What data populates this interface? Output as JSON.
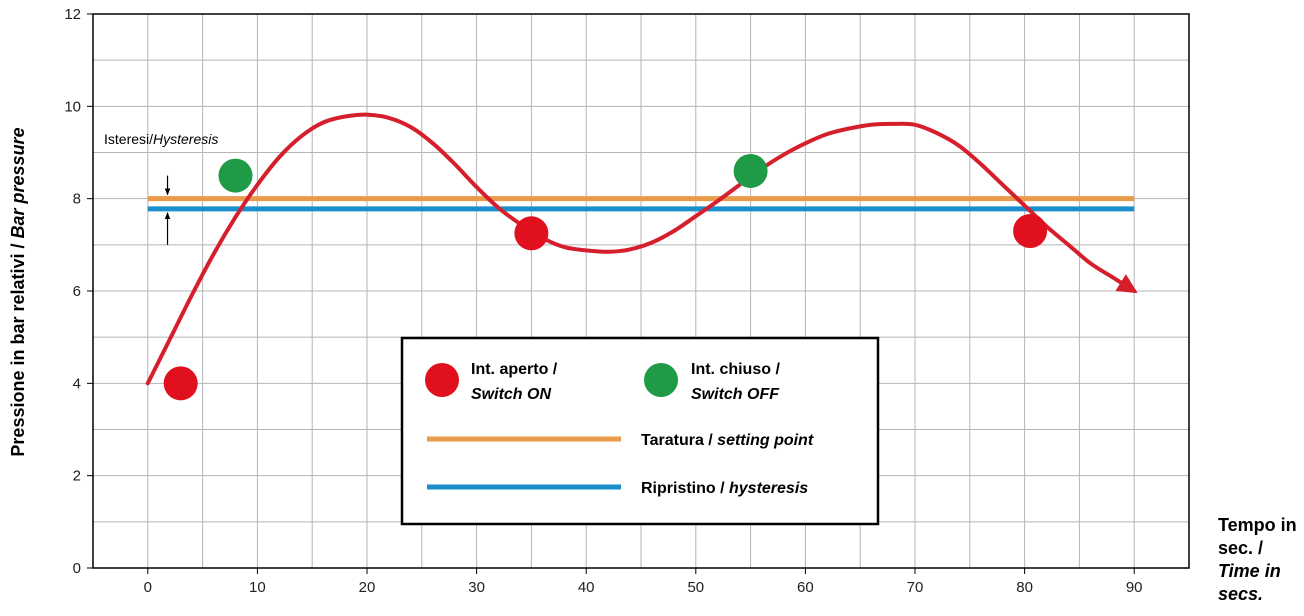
{
  "colors": {
    "curve": "#d61f2c",
    "setting_line": "#e99a4a",
    "hysteresis_line": "#1a8fcc",
    "switch_on": "#e0101e",
    "switch_off": "#1f9a46",
    "grid": "#b5b5b5"
  },
  "chart_data": {
    "type": "line",
    "x_ticks": [
      0,
      10,
      20,
      30,
      40,
      50,
      60,
      70,
      80,
      90
    ],
    "y_ticks": [
      0,
      2,
      4,
      6,
      8,
      10,
      12
    ],
    "xlim": [
      -5,
      95
    ],
    "ylim": [
      0,
      12
    ],
    "grid": true,
    "ylabel_main": "Pressione in bar relativi / ",
    "ylabel_en": "Bar pressure",
    "xlabel_main": "Tempo in sec. /",
    "xlabel_en": "Time in secs.",
    "curve": {
      "x": [
        0,
        2,
        4,
        6,
        8,
        10,
        12,
        14,
        16,
        18,
        20,
        22,
        24,
        26,
        28,
        30,
        32,
        34,
        36,
        38,
        40,
        42,
        44,
        46,
        48,
        50,
        52,
        54,
        56,
        58,
        60,
        62,
        64,
        66,
        68,
        70,
        72,
        74,
        76,
        78,
        80,
        82,
        84,
        86,
        88,
        90
      ],
      "y": [
        4.0,
        4.95,
        5.9,
        6.8,
        7.6,
        8.3,
        8.9,
        9.35,
        9.65,
        9.78,
        9.82,
        9.75,
        9.55,
        9.2,
        8.75,
        8.25,
        7.8,
        7.45,
        7.15,
        6.95,
        6.88,
        6.85,
        6.9,
        7.05,
        7.3,
        7.62,
        7.95,
        8.3,
        8.65,
        8.95,
        9.2,
        9.4,
        9.52,
        9.6,
        9.62,
        9.6,
        9.42,
        9.15,
        8.75,
        8.3,
        7.85,
        7.4,
        7.0,
        6.6,
        6.3,
        6.0
      ]
    },
    "setting_point": 8.0,
    "hysteresis": 7.78,
    "switch_on_points": [
      {
        "x": 3,
        "y": 4.0
      },
      {
        "x": 35,
        "y": 7.25
      },
      {
        "x": 80.5,
        "y": 7.3
      }
    ],
    "switch_off_points": [
      {
        "x": 8,
        "y": 8.5
      },
      {
        "x": 55,
        "y": 8.6
      }
    ],
    "annotation": {
      "label_main": "Isteresi/",
      "label_en": "Hysteresis",
      "x": 1.8
    },
    "legend": {
      "on_main": "Int. aperto /",
      "on_en": "Switch ON",
      "off_main": "Int. chiuso /",
      "off_en": "Switch OFF",
      "setting_main": "Taratura / ",
      "setting_en": "setting point",
      "hyst_main": "Ripristino / ",
      "hyst_en": "hysteresis"
    }
  }
}
